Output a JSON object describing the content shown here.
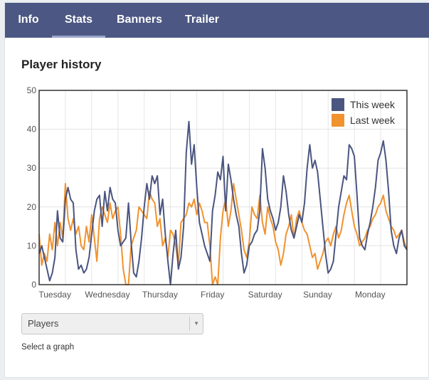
{
  "tabs": [
    {
      "label": "Info",
      "active": false
    },
    {
      "label": "Stats",
      "active": true
    },
    {
      "label": "Banners",
      "active": false
    },
    {
      "label": "Trailer",
      "active": false
    }
  ],
  "section": {
    "title": "Player history"
  },
  "graph_select": {
    "value": "Players",
    "hint": "Select a graph"
  },
  "chart_data": {
    "type": "line",
    "title": "",
    "xlabel": "",
    "ylabel": "",
    "ylim": [
      0,
      50
    ],
    "yticks": [
      0,
      10,
      20,
      30,
      40,
      50
    ],
    "xlim": [
      0,
      7
    ],
    "xtick_labels": [
      "Tuesday",
      "Wednesday",
      "Thursday",
      "Friday",
      "Saturday",
      "Sunday",
      "Monday"
    ],
    "grid": true,
    "legend_position": "top-right",
    "x_unit": "days",
    "series": [
      {
        "name": "This week",
        "color": "#4a5580",
        "x": [
          0,
          0.05,
          0.1,
          0.15,
          0.2,
          0.25,
          0.3,
          0.35,
          0.4,
          0.45,
          0.5,
          0.55,
          0.6,
          0.65,
          0.7,
          0.75,
          0.8,
          0.85,
          0.9,
          0.95,
          1,
          1.05,
          1.1,
          1.15,
          1.2,
          1.25,
          1.3,
          1.35,
          1.4,
          1.45,
          1.5,
          1.55,
          1.6,
          1.65,
          1.7,
          1.75,
          1.8,
          1.85,
          1.9,
          1.95,
          2,
          2.05,
          2.1,
          2.15,
          2.2,
          2.25,
          2.3,
          2.35,
          2.4,
          2.45,
          2.5,
          2.55,
          2.6,
          2.65,
          2.7,
          2.75,
          2.8,
          2.85,
          2.9,
          2.95,
          3,
          3.05,
          3.1,
          3.15,
          3.2,
          3.25,
          3.3,
          3.35,
          3.4,
          3.45,
          3.5,
          3.55,
          3.6,
          3.65,
          3.7,
          3.75,
          3.8,
          3.85,
          3.9,
          3.95,
          4,
          4.05,
          4.1,
          4.15,
          4.2,
          4.25,
          4.3,
          4.35,
          4.4,
          4.45,
          4.5,
          4.55,
          4.6,
          4.65,
          4.7,
          4.75,
          4.8,
          4.85,
          4.9,
          4.95,
          5,
          5.05,
          5.1,
          5.15,
          5.2,
          5.25,
          5.3,
          5.35,
          5.4,
          5.45,
          5.5,
          5.55,
          5.6,
          5.65,
          5.7,
          5.75,
          5.8,
          5.85,
          5.9,
          5.95,
          6,
          6.05,
          6.1,
          6.15,
          6.2,
          6.25,
          6.3,
          6.35,
          6.4,
          6.45,
          6.5,
          6.55,
          6.6,
          6.65,
          6.7,
          6.75,
          6.8,
          6.85,
          6.9,
          6.95,
          7
        ],
        "values": [
          8,
          10,
          7,
          4,
          1,
          3,
          7,
          19,
          12,
          11,
          22,
          25,
          22,
          21,
          9,
          4,
          5,
          3,
          4,
          7,
          13,
          19,
          22,
          23,
          15,
          24,
          19,
          25,
          22,
          21,
          14,
          10,
          11,
          12,
          21,
          11,
          3,
          2,
          6,
          12,
          20,
          26,
          22,
          28,
          26,
          28,
          18,
          22,
          13,
          6,
          0,
          8,
          14,
          4,
          7,
          15,
          34,
          42,
          31,
          36,
          25,
          16,
          13,
          10,
          8,
          6,
          19,
          23,
          29,
          27,
          33,
          19,
          31,
          27,
          22,
          18,
          15,
          8,
          3,
          5,
          10,
          11,
          13,
          14,
          19,
          35,
          30,
          22,
          19,
          17,
          14,
          16,
          20,
          28,
          24,
          18,
          14,
          12,
          15,
          18,
          16,
          21,
          30,
          36,
          30,
          32,
          29,
          22,
          15,
          8,
          3,
          4,
          6,
          13,
          20,
          24,
          28,
          27,
          36,
          35,
          33,
          23,
          12,
          10,
          9,
          13,
          16,
          20,
          25,
          32,
          34,
          37,
          32,
          24,
          14,
          10,
          8,
          12,
          14,
          10,
          9
        ]
      },
      {
        "name": "Last week",
        "color": "#f0922e",
        "x": [
          0,
          0.05,
          0.1,
          0.15,
          0.2,
          0.25,
          0.3,
          0.35,
          0.4,
          0.45,
          0.5,
          0.55,
          0.6,
          0.65,
          0.7,
          0.75,
          0.8,
          0.85,
          0.9,
          0.95,
          1,
          1.05,
          1.1,
          1.15,
          1.2,
          1.25,
          1.3,
          1.35,
          1.4,
          1.45,
          1.5,
          1.55,
          1.6,
          1.65,
          1.7,
          1.75,
          1.8,
          1.85,
          1.9,
          1.95,
          2,
          2.05,
          2.1,
          2.15,
          2.2,
          2.25,
          2.3,
          2.35,
          2.4,
          2.45,
          2.5,
          2.55,
          2.6,
          2.65,
          2.7,
          2.75,
          2.8,
          2.85,
          2.9,
          2.95,
          3,
          3.05,
          3.1,
          3.15,
          3.2,
          3.25,
          3.3,
          3.35,
          3.4,
          3.45,
          3.5,
          3.55,
          3.6,
          3.65,
          3.7,
          3.75,
          3.8,
          3.85,
          3.9,
          3.95,
          4,
          4.05,
          4.1,
          4.15,
          4.2,
          4.25,
          4.3,
          4.35,
          4.4,
          4.45,
          4.5,
          4.55,
          4.6,
          4.65,
          4.7,
          4.75,
          4.8,
          4.85,
          4.9,
          4.95,
          5,
          5.05,
          5.1,
          5.15,
          5.2,
          5.25,
          5.3,
          5.35,
          5.4,
          5.45,
          5.5,
          5.55,
          5.6,
          5.65,
          5.7,
          5.75,
          5.8,
          5.85,
          5.9,
          5.95,
          6,
          6.05,
          6.1,
          6.15,
          6.2,
          6.25,
          6.3,
          6.35,
          6.4,
          6.45,
          6.5,
          6.55,
          6.6,
          6.65,
          6.7,
          6.75,
          6.8,
          6.85,
          6.9,
          6.95,
          7
        ],
        "values": [
          13,
          5,
          8,
          6,
          13,
          9,
          16,
          10,
          16,
          12,
          26,
          17,
          14,
          17,
          13,
          15,
          10,
          9,
          15,
          11,
          18,
          12,
          6,
          17,
          20,
          18,
          16,
          21,
          17,
          19,
          20,
          13,
          4,
          0,
          0,
          10,
          12,
          14,
          20,
          19,
          18,
          17,
          24,
          22,
          21,
          15,
          17,
          10,
          12,
          7,
          14,
          13,
          10,
          5,
          16,
          17,
          18,
          21,
          20,
          22,
          18,
          21,
          19,
          16,
          16,
          10,
          0,
          2,
          0,
          12,
          19,
          22,
          15,
          19,
          26,
          22,
          18,
          14,
          9,
          7,
          11,
          20,
          18,
          17,
          23,
          16,
          13,
          20,
          17,
          15,
          11,
          9,
          5,
          8,
          13,
          15,
          18,
          12,
          17,
          19,
          16,
          14,
          13,
          10,
          7,
          8,
          4,
          6,
          8,
          11,
          12,
          10,
          13,
          15,
          12,
          14,
          18,
          21,
          23,
          19,
          15,
          13,
          10,
          11,
          12,
          14,
          15,
          17,
          18,
          20,
          21,
          23,
          19,
          17,
          15,
          14,
          12,
          13,
          14,
          11,
          9
        ]
      }
    ]
  }
}
